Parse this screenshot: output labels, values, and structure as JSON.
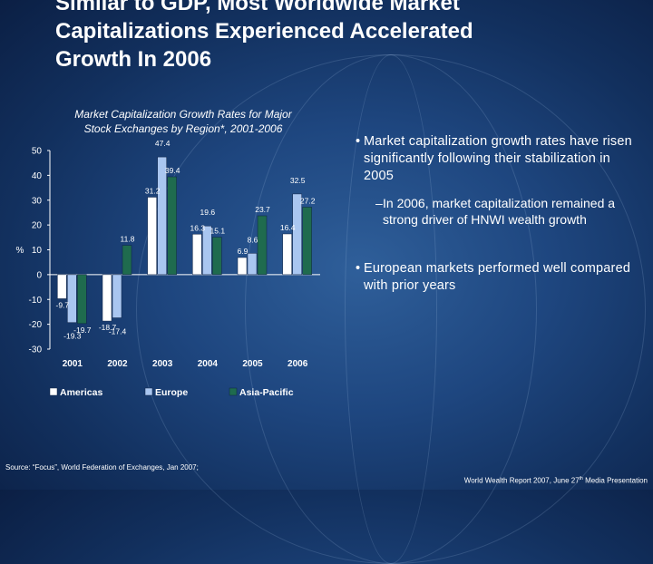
{
  "slide": {
    "title_line1": "Similar to GDP, Most Worldwide Market",
    "title_line2": "Capitalizations Experienced Accelerated",
    "title_line3": "Growth In 2006"
  },
  "chart_data": {
    "type": "bar",
    "title_line1": "Market Capitalization Growth Rates for Major",
    "title_line2": "Stock Exchanges by Region*, 2001-2006",
    "ylabel": "%",
    "ylim": [
      -30,
      50
    ],
    "yticks": [
      -30,
      -20,
      -10,
      0,
      10,
      20,
      30,
      40,
      50
    ],
    "categories": [
      "2001",
      "2002",
      "2003",
      "2004",
      "2005",
      "2006"
    ],
    "series": [
      {
        "name": "Americas",
        "color": "#ffffff",
        "values": [
          -9.7,
          -18.7,
          31.2,
          16.3,
          6.9,
          16.4
        ]
      },
      {
        "name": "Europe",
        "color": "#a9c6f0",
        "values": [
          -19.3,
          -17.4,
          47.4,
          19.6,
          8.6,
          32.5
        ]
      },
      {
        "name": "Asia-Pacific",
        "color": "#1f6b4e",
        "values": [
          -19.7,
          11.8,
          39.4,
          15.1,
          23.7,
          27.2
        ]
      }
    ],
    "legend_position": "bottom"
  },
  "bullets": {
    "b1": "Market capitalization growth rates have risen significantly following their stabilization in 2005",
    "sub1_dash": "–",
    "sub1": "In 2006, market capitalization remained a strong driver of HNWI wealth growth",
    "b2": "European markets performed well compared with prior years",
    "bullet_char": "•"
  },
  "footer": {
    "source": "Source: “Focus”, World Federation of Exchanges, Jan 2007;",
    "report": "World Wealth Report 2007,  June 27",
    "report_sup": "th",
    "report_tail": "  Media Presentation"
  }
}
